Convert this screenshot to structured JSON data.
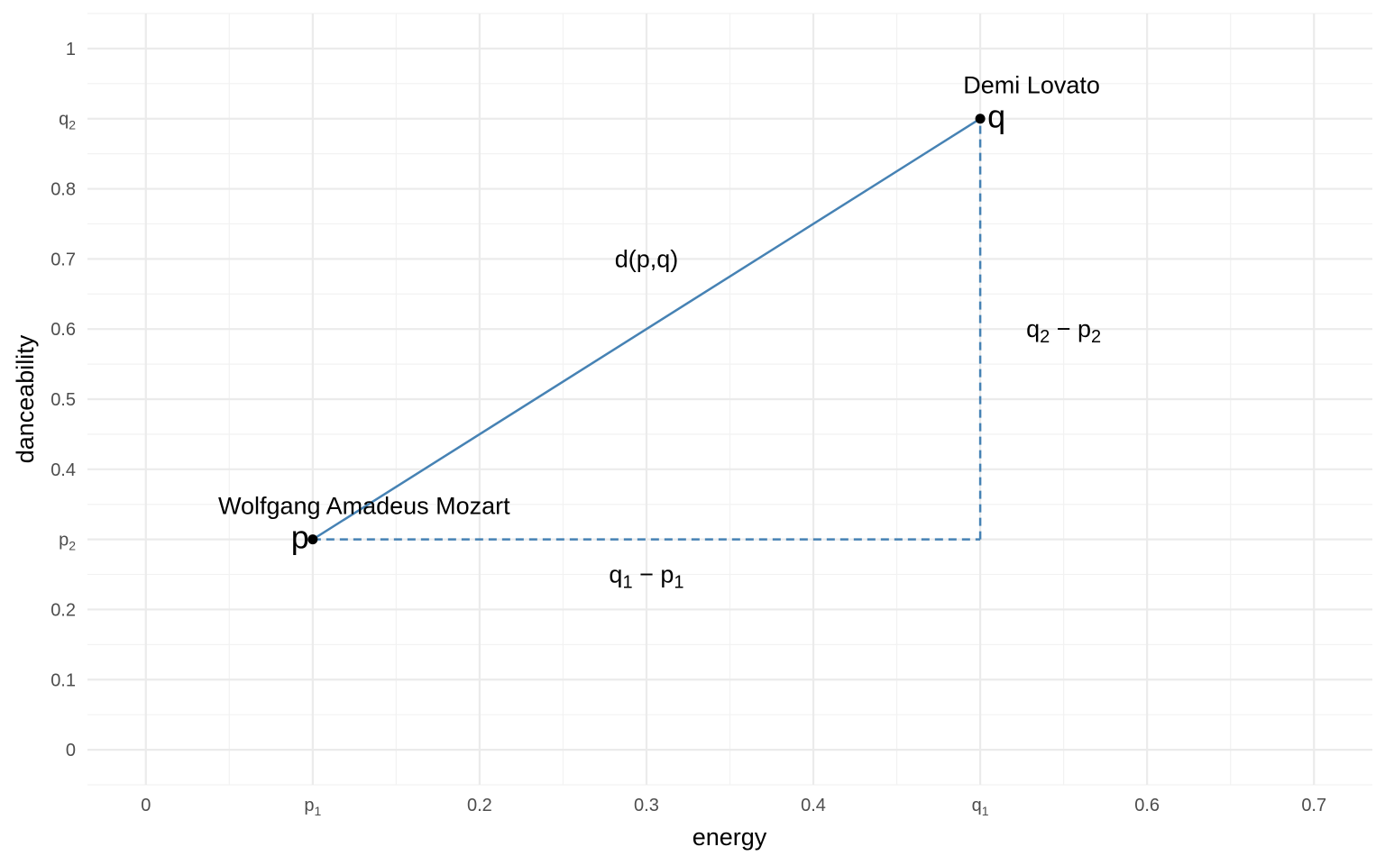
{
  "chart_data": {
    "type": "scatter",
    "xlabel": "energy",
    "ylabel": "danceability",
    "xlim": [
      -0.035,
      0.735
    ],
    "ylim": [
      -0.05,
      1.05
    ],
    "grid": true,
    "x_ticks": [
      {
        "value": 0,
        "label": "0"
      },
      {
        "value": 0.1,
        "label": "p",
        "sub": "1"
      },
      {
        "value": 0.2,
        "label": "0.2"
      },
      {
        "value": 0.3,
        "label": "0.3"
      },
      {
        "value": 0.4,
        "label": "0.4"
      },
      {
        "value": 0.5,
        "label": "q",
        "sub": "1"
      },
      {
        "value": 0.6,
        "label": "0.6"
      },
      {
        "value": 0.7,
        "label": "0.7"
      }
    ],
    "y_ticks": [
      {
        "value": 0,
        "label": "0"
      },
      {
        "value": 0.1,
        "label": "0.1"
      },
      {
        "value": 0.2,
        "label": "0.2"
      },
      {
        "value": 0.3,
        "label": "p",
        "sub": "2"
      },
      {
        "value": 0.4,
        "label": "0.4"
      },
      {
        "value": 0.5,
        "label": "0.5"
      },
      {
        "value": 0.6,
        "label": "0.6"
      },
      {
        "value": 0.7,
        "label": "0.7"
      },
      {
        "value": 0.8,
        "label": "0.8"
      },
      {
        "value": 0.9,
        "label": "q",
        "sub": "2"
      },
      {
        "value": 1,
        "label": "1"
      }
    ],
    "points": [
      {
        "name": "Wolfgang Amadeus Mozart",
        "letter": "p",
        "x": 0.1,
        "y": 0.3
      },
      {
        "name": "Demi Lovato",
        "letter": "q",
        "x": 0.5,
        "y": 0.9
      }
    ],
    "segments": [
      {
        "from": [
          0.1,
          0.3
        ],
        "to": [
          0.5,
          0.9
        ],
        "style": "solid"
      },
      {
        "from": [
          0.1,
          0.3
        ],
        "to": [
          0.5,
          0.3
        ],
        "style": "dashed"
      },
      {
        "from": [
          0.5,
          0.3
        ],
        "to": [
          0.5,
          0.9
        ],
        "style": "dashed"
      }
    ],
    "annotations": [
      {
        "text": "d(p,q)",
        "x": 0.3,
        "y": 0.7
      },
      {
        "text": "q",
        "sub": "1",
        "rest": " − p",
        "sub2": "1",
        "x": 0.3,
        "y": 0.25
      },
      {
        "text": "q",
        "sub": "2",
        "rest": " − p",
        "sub2": "2",
        "x": 0.55,
        "y": 0.6
      }
    ],
    "colors": {
      "line": "#4682b4",
      "point": "#000000",
      "grid_major": "#ebebeb",
      "grid_minor": "#f2f2f2"
    }
  }
}
